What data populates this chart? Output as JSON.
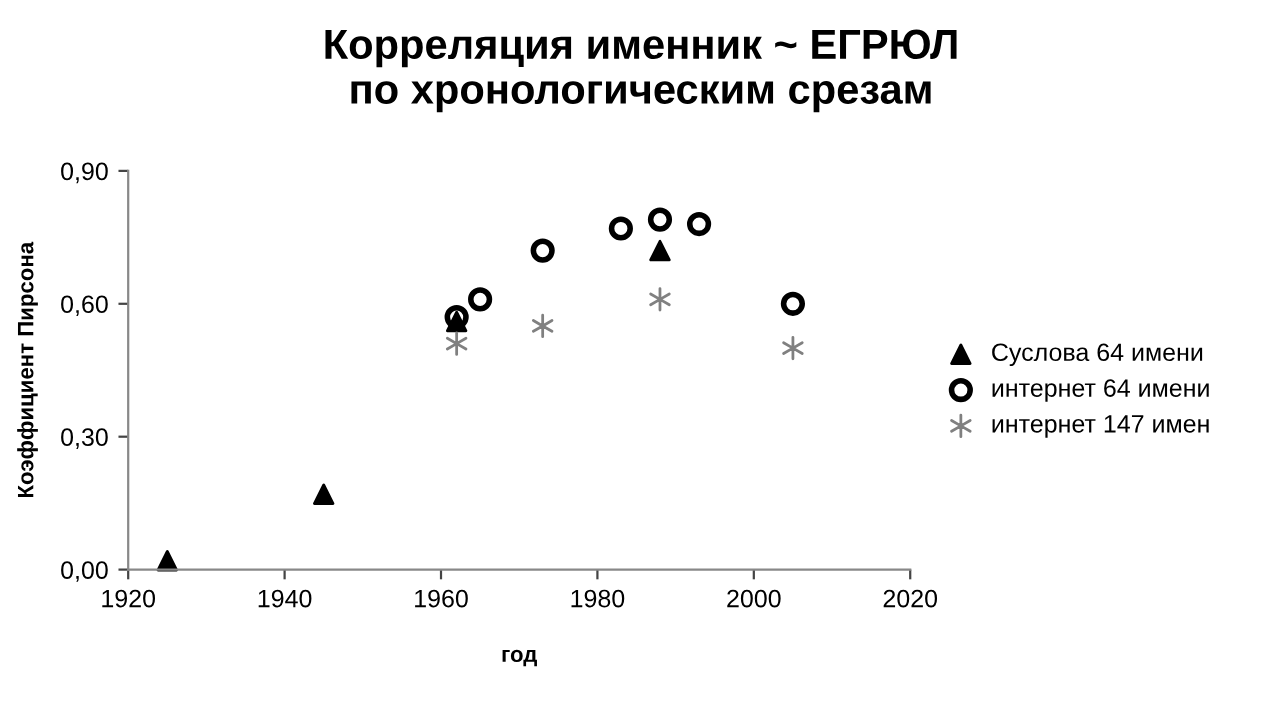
{
  "chart_data": {
    "type": "scatter",
    "title": "Корреляция именник ~ ЕГРЮЛ\nпо хронологическим срезам",
    "xlabel": "год",
    "ylabel": "Коэффициент Пирсона",
    "xlim": [
      1920,
      2020
    ],
    "xticks": [
      1920,
      1940,
      1960,
      1980,
      2000,
      2020
    ],
    "ylim": [
      0,
      0.9
    ],
    "yticks": [
      {
        "value": 0,
        "label": "0,00"
      },
      {
        "value": 0.3,
        "label": "0,30"
      },
      {
        "value": 0.6,
        "label": "0,60"
      },
      {
        "value": 0.9,
        "label": "0,90"
      }
    ],
    "grid": false,
    "legend": "right",
    "series": [
      {
        "name": "Суслова 64 имени",
        "color": "#000000",
        "marker": "triangle",
        "x": [
          1925,
          1945,
          1962,
          1988
        ],
        "values": [
          0.02,
          0.17,
          0.56,
          0.72
        ]
      },
      {
        "name": "интернет 64 имени",
        "color": "#000000",
        "marker": "circle",
        "x": [
          1962,
          1965,
          1973,
          1983,
          1988,
          1993,
          2005
        ],
        "values": [
          0.57,
          0.61,
          0.72,
          0.77,
          0.79,
          0.78,
          0.6
        ]
      },
      {
        "name": "интернет 147 имен",
        "color": "#808080",
        "marker": "cross",
        "x": [
          1962,
          1973,
          1988,
          2005
        ],
        "values": [
          0.51,
          0.55,
          0.61,
          0.5
        ]
      }
    ]
  }
}
